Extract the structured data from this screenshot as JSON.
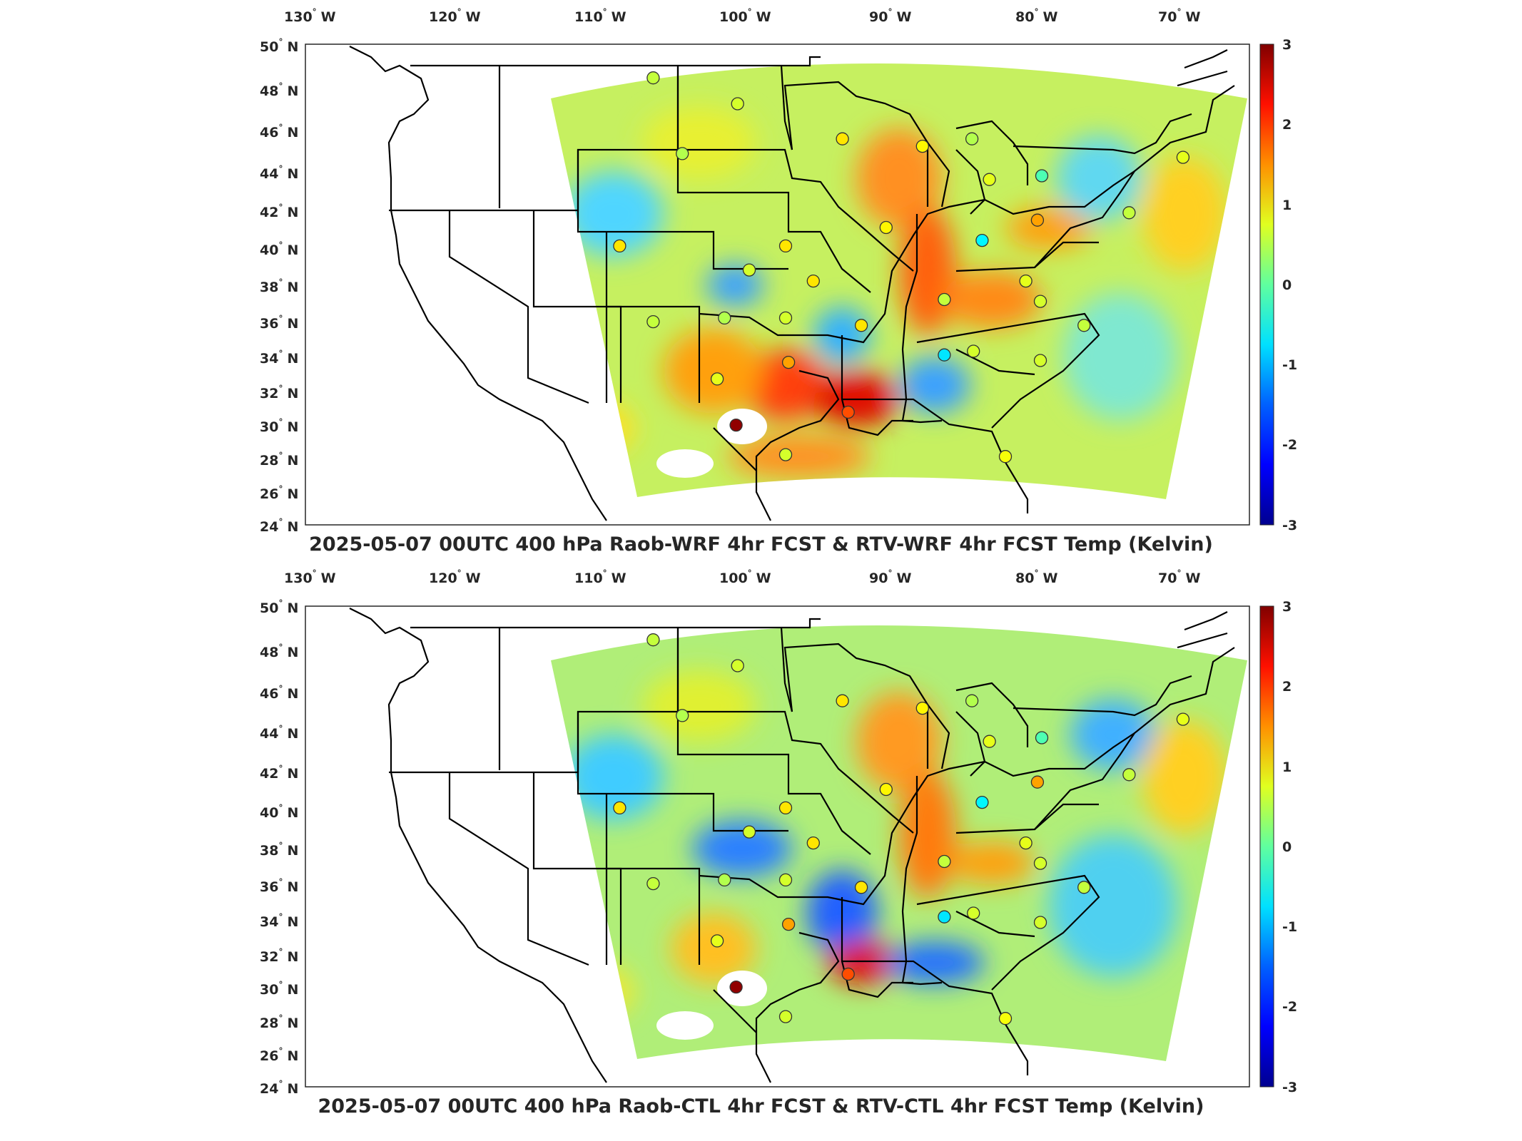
{
  "colorbar_ticks": [
    "3",
    "2",
    "1",
    "0",
    "-1",
    "-2",
    "-3"
  ],
  "colormap": [
    "#00008f",
    "#0000ff",
    "#0080ff",
    "#00ffff",
    "#80ff80",
    "#ffff00",
    "#ff8000",
    "#ff0000",
    "#800000"
  ],
  "lon_labels": [
    {
      "deg": "130",
      "dir": "W"
    },
    {
      "deg": "120",
      "dir": "W"
    },
    {
      "deg": "110",
      "dir": "W"
    },
    {
      "deg": "100",
      "dir": "W"
    },
    {
      "deg": "90",
      "dir": "W"
    },
    {
      "deg": "80",
      "dir": "W"
    },
    {
      "deg": "70",
      "dir": "W"
    }
  ],
  "lat_labels": [
    {
      "deg": "50",
      "dir": "N"
    },
    {
      "deg": "48",
      "dir": "N"
    },
    {
      "deg": "46",
      "dir": "N"
    },
    {
      "deg": "44",
      "dir": "N"
    },
    {
      "deg": "42",
      "dir": "N"
    },
    {
      "deg": "40",
      "dir": "N"
    },
    {
      "deg": "38",
      "dir": "N"
    },
    {
      "deg": "36",
      "dir": "N"
    },
    {
      "deg": "34",
      "dir": "N"
    },
    {
      "deg": "32",
      "dir": "N"
    },
    {
      "deg": "30",
      "dir": "N"
    },
    {
      "deg": "28",
      "dir": "N"
    },
    {
      "deg": "26",
      "dir": "N"
    },
    {
      "deg": "24",
      "dir": "N"
    }
  ],
  "panels": [
    {
      "title": "2025-05-07 00UTC 400 hPa Raob-WRF 4hr FCST & RTV-WRF 4hr FCST Temp (Kelvin)",
      "stations": [
        {
          "lon": -106.6,
          "lat": 48.2,
          "value": 0.4
        },
        {
          "lon": -100.8,
          "lat": 46.8,
          "value": 0.5
        },
        {
          "lon": -93.6,
          "lat": 44.9,
          "value": 0.9
        },
        {
          "lon": -104.6,
          "lat": 44.1,
          "value": 0.3
        },
        {
          "lon": -88.1,
          "lat": 44.5,
          "value": 0.8
        },
        {
          "lon": -84.7,
          "lat": 44.9,
          "value": 0.3
        },
        {
          "lon": -83.5,
          "lat": 42.7,
          "value": 0.6
        },
        {
          "lon": -79.9,
          "lat": 42.9,
          "value": -0.3
        },
        {
          "lon": -70.2,
          "lat": 43.9,
          "value": 0.6
        },
        {
          "lon": -108.9,
          "lat": 39.1,
          "value": 0.9
        },
        {
          "lon": -97.5,
          "lat": 39.1,
          "value": 0.9
        },
        {
          "lon": -90.6,
          "lat": 40.1,
          "value": 0.8
        },
        {
          "lon": -84.0,
          "lat": 39.4,
          "value": -0.8
        },
        {
          "lon": -80.2,
          "lat": 40.5,
          "value": 1.3
        },
        {
          "lon": -100.0,
          "lat": 37.8,
          "value": 0.5
        },
        {
          "lon": -95.6,
          "lat": 37.2,
          "value": 0.9
        },
        {
          "lon": -86.6,
          "lat": 36.2,
          "value": 0.4
        },
        {
          "lon": -81.0,
          "lat": 37.2,
          "value": 0.6
        },
        {
          "lon": -80.0,
          "lat": 36.1,
          "value": 0.5
        },
        {
          "lon": -106.6,
          "lat": 35.0,
          "value": 0.4
        },
        {
          "lon": -101.7,
          "lat": 35.2,
          "value": 0.3
        },
        {
          "lon": -97.5,
          "lat": 35.2,
          "value": 0.5
        },
        {
          "lon": -92.3,
          "lat": 34.8,
          "value": 0.9
        },
        {
          "lon": -77.0,
          "lat": 34.8,
          "value": 0.4
        },
        {
          "lon": -102.2,
          "lat": 31.9,
          "value": 0.6
        },
        {
          "lon": -97.3,
          "lat": 32.8,
          "value": 1.3
        },
        {
          "lon": -86.6,
          "lat": 33.2,
          "value": -0.9
        },
        {
          "lon": -84.6,
          "lat": 33.4,
          "value": 0.5
        },
        {
          "lon": -80.0,
          "lat": 32.9,
          "value": 0.5
        },
        {
          "lon": -93.2,
          "lat": 30.1,
          "value": 1.8
        },
        {
          "lon": -100.9,
          "lat": 29.4,
          "value": 2.9
        },
        {
          "lon": -97.5,
          "lat": 27.8,
          "value": 0.5
        },
        {
          "lon": -82.4,
          "lat": 27.7,
          "value": 0.7
        },
        {
          "lon": -73.9,
          "lat": 40.9,
          "value": 0.4
        }
      ]
    },
    {
      "title": "2025-05-07 00UTC 400 hPa Raob-CTL 4hr FCST & RTV-CTL 4hr FCST Temp (Kelvin)",
      "stations": [
        {
          "lon": -106.6,
          "lat": 48.2,
          "value": 0.4
        },
        {
          "lon": -100.8,
          "lat": 46.8,
          "value": 0.5
        },
        {
          "lon": -93.6,
          "lat": 44.9,
          "value": 0.9
        },
        {
          "lon": -104.6,
          "lat": 44.1,
          "value": 0.3
        },
        {
          "lon": -88.1,
          "lat": 44.5,
          "value": 0.8
        },
        {
          "lon": -84.7,
          "lat": 44.9,
          "value": 0.3
        },
        {
          "lon": -83.5,
          "lat": 42.7,
          "value": 0.6
        },
        {
          "lon": -79.9,
          "lat": 42.9,
          "value": -0.3
        },
        {
          "lon": -70.2,
          "lat": 43.9,
          "value": 0.6
        },
        {
          "lon": -108.9,
          "lat": 39.1,
          "value": 0.9
        },
        {
          "lon": -97.5,
          "lat": 39.1,
          "value": 0.9
        },
        {
          "lon": -90.6,
          "lat": 40.1,
          "value": 0.8
        },
        {
          "lon": -84.0,
          "lat": 39.4,
          "value": -0.8
        },
        {
          "lon": -80.2,
          "lat": 40.5,
          "value": 1.3
        },
        {
          "lon": -100.0,
          "lat": 37.8,
          "value": 0.5
        },
        {
          "lon": -95.6,
          "lat": 37.2,
          "value": 0.9
        },
        {
          "lon": -86.6,
          "lat": 36.2,
          "value": 0.4
        },
        {
          "lon": -81.0,
          "lat": 37.2,
          "value": 0.6
        },
        {
          "lon": -80.0,
          "lat": 36.1,
          "value": 0.5
        },
        {
          "lon": -106.6,
          "lat": 35.0,
          "value": 0.4
        },
        {
          "lon": -101.7,
          "lat": 35.2,
          "value": 0.3
        },
        {
          "lon": -97.5,
          "lat": 35.2,
          "value": 0.5
        },
        {
          "lon": -92.3,
          "lat": 34.8,
          "value": 0.9
        },
        {
          "lon": -77.0,
          "lat": 34.8,
          "value": 0.4
        },
        {
          "lon": -102.2,
          "lat": 31.9,
          "value": 0.6
        },
        {
          "lon": -97.3,
          "lat": 32.8,
          "value": 1.3
        },
        {
          "lon": -86.6,
          "lat": 33.2,
          "value": -0.9
        },
        {
          "lon": -84.6,
          "lat": 33.4,
          "value": 0.5
        },
        {
          "lon": -80.0,
          "lat": 32.9,
          "value": 0.5
        },
        {
          "lon": -93.2,
          "lat": 30.1,
          "value": 1.8
        },
        {
          "lon": -100.9,
          "lat": 29.4,
          "value": 2.9
        },
        {
          "lon": -97.5,
          "lat": 27.8,
          "value": 0.5
        },
        {
          "lon": -82.4,
          "lat": 27.7,
          "value": 0.7
        },
        {
          "lon": -73.9,
          "lat": 40.9,
          "value": 0.4
        }
      ]
    }
  ]
}
